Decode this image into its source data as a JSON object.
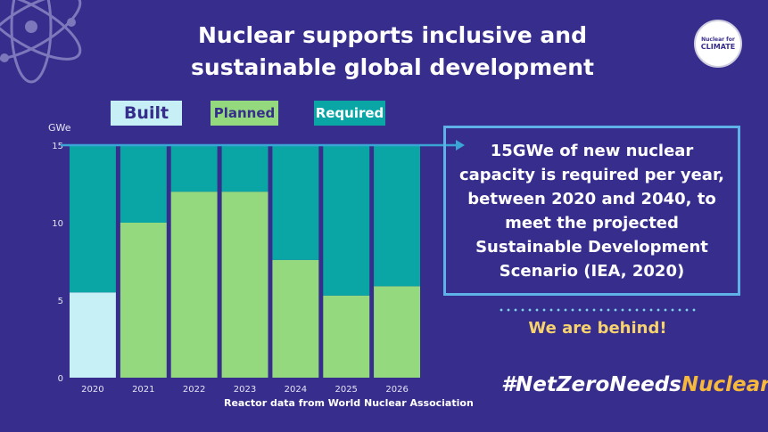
{
  "header": {
    "title_line1": "Nuclear supports inclusive and",
    "title_line2": "sustainable global development",
    "logo_line1": "Nuclear for",
    "logo_line2": "CLIMATE"
  },
  "legend": {
    "built": "Built",
    "planned": "Planned",
    "required": "Required"
  },
  "callout": {
    "text": "15GWe of new nuclear capacity is required per year, between 2020 and 2040, to meet the projected Sustainable Development Scenario (IEA, 2020)",
    "tagline": "We are behind!"
  },
  "footer": {
    "hashtag_main": "#NetZeroNeeds",
    "hashtag_highlight": "Nuclear",
    "source": "Reactor data from World Nuclear Association"
  },
  "colors": {
    "background": "#372d8c",
    "built": "#c6f0f5",
    "planned": "#95d97f",
    "required": "#0aa6a6",
    "callout_border": "#5fb2e8",
    "highlight": "#f6d36e"
  },
  "chart_data": {
    "type": "bar",
    "stacked": true,
    "categories": [
      "2020",
      "2021",
      "2022",
      "2023",
      "2024",
      "2025",
      "2026"
    ],
    "ylabel": "GWe",
    "ylim": [
      0,
      15
    ],
    "yticks": [
      "0",
      "5",
      "10",
      "15"
    ],
    "grid": false,
    "legend_position": "top",
    "required_total": 15,
    "series": [
      {
        "name": "Built",
        "values": [
          5.5,
          0,
          0,
          0,
          0,
          0,
          0
        ],
        "color": "#c6f0f5"
      },
      {
        "name": "Planned",
        "values": [
          0,
          10,
          12,
          12,
          7.6,
          5.3,
          5.9
        ],
        "color": "#95d97f"
      },
      {
        "name": "Required",
        "values": [
          9.5,
          5,
          3,
          3,
          7.4,
          9.7,
          9.1
        ],
        "color": "#0aa6a6"
      }
    ]
  }
}
